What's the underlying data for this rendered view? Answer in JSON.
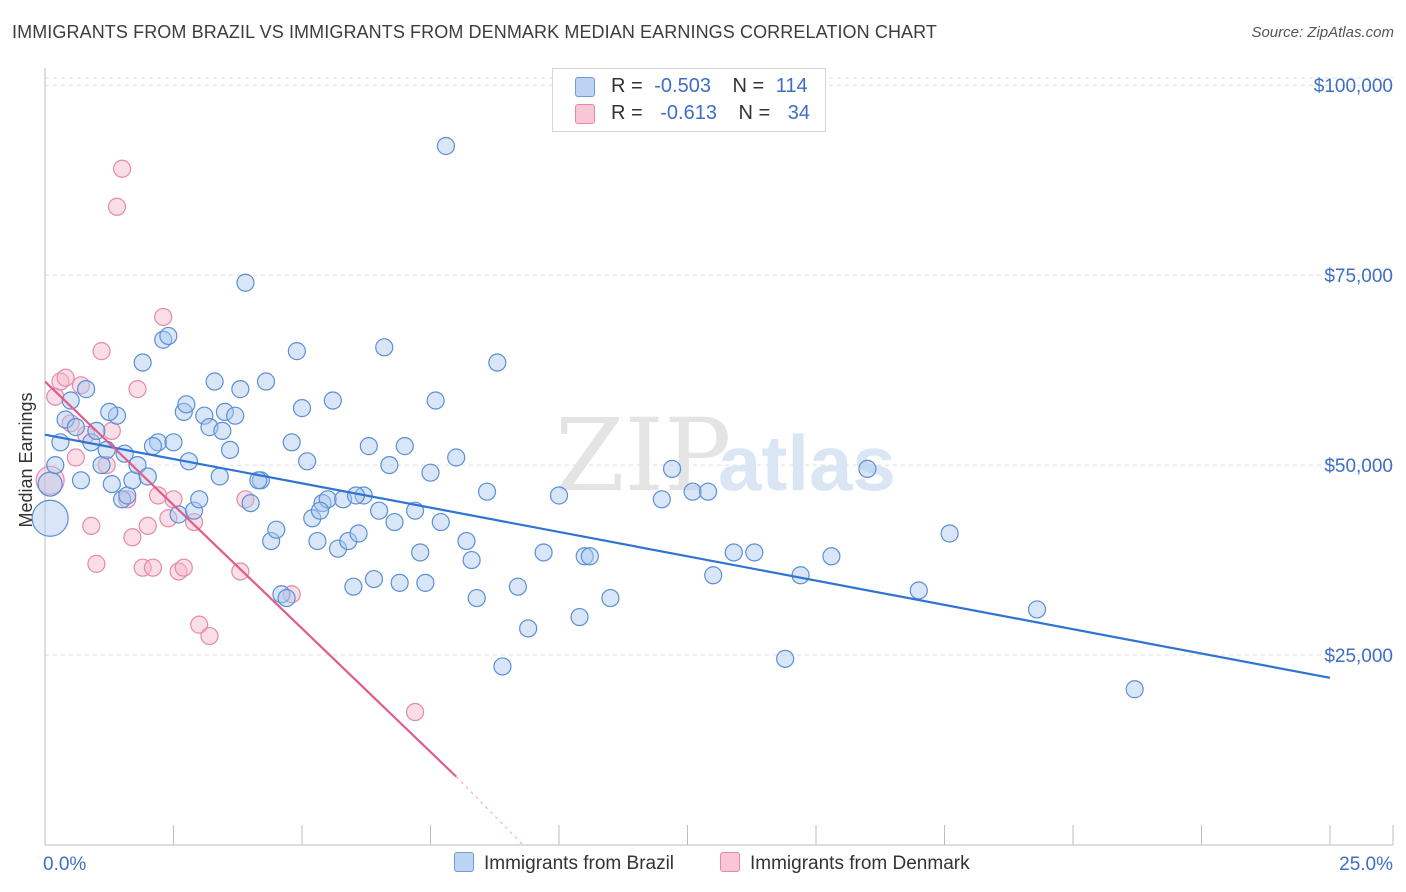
{
  "title": "IMMIGRANTS FROM BRAZIL VS IMMIGRANTS FROM DENMARK MEDIAN EARNINGS CORRELATION CHART",
  "source": "Source: ZipAtlas.com",
  "watermark": {
    "zip": "ZIP",
    "atlas": "atlas"
  },
  "legend": {
    "brazil": {
      "r_label": "R =",
      "r_value": "-0.503",
      "n_label": "N =",
      "n_value": "114"
    },
    "denmark": {
      "r_label": "R =",
      "r_value": "-0.613",
      "n_label": "N =",
      "n_value": "34"
    }
  },
  "colors": {
    "brazil_fill": "#a9c7ee",
    "brazil_stroke": "#5b8fd6",
    "brazil_line": "#2f74d0",
    "denmark_fill": "#f5b5c9",
    "denmark_stroke": "#e58aa8",
    "denmark_line": "#e05d8a",
    "tick_text": "#3d6fc4"
  },
  "chart_data": {
    "type": "scatter",
    "title": "IMMIGRANTS FROM BRAZIL VS IMMIGRANTS FROM DENMARK MEDIAN EARNINGS CORRELATION CHART",
    "xlabel": "",
    "ylabel": "Median Earnings",
    "xlim": [
      0,
      25
    ],
    "ylim": [
      0,
      102000
    ],
    "x_tick_labels": [
      "0.0%",
      "25.0%"
    ],
    "y_ticks": [
      25000,
      50000,
      75000,
      100000
    ],
    "y_tick_labels": [
      "$25,000",
      "$50,000",
      "$75,000",
      "$100,000"
    ],
    "grid": true,
    "legend_position": "top-center",
    "series": [
      {
        "name": "Immigrants from Brazil",
        "r": -0.503,
        "n": 114,
        "trend": {
          "x": [
            0,
            25
          ],
          "y": [
            54000,
            22000
          ]
        },
        "points": [
          [
            0.1,
            43000
          ],
          [
            0.1,
            47500
          ],
          [
            0.2,
            50000
          ],
          [
            0.3,
            53000
          ],
          [
            0.4,
            56000
          ],
          [
            0.5,
            58500
          ],
          [
            0.6,
            55000
          ],
          [
            0.7,
            48000
          ],
          [
            0.8,
            60000
          ],
          [
            0.9,
            53000
          ],
          [
            1.0,
            54500
          ],
          [
            1.1,
            50000
          ],
          [
            1.2,
            52000
          ],
          [
            1.3,
            47500
          ],
          [
            1.4,
            56500
          ],
          [
            1.5,
            45500
          ],
          [
            1.6,
            46000
          ],
          [
            1.7,
            48000
          ],
          [
            1.8,
            50000
          ],
          [
            1.9,
            63500
          ],
          [
            2.0,
            48500
          ],
          [
            2.2,
            53000
          ],
          [
            2.3,
            66500
          ],
          [
            2.4,
            67000
          ],
          [
            2.5,
            53000
          ],
          [
            2.6,
            43500
          ],
          [
            2.7,
            57000
          ],
          [
            2.8,
            50500
          ],
          [
            2.9,
            44000
          ],
          [
            3.0,
            45500
          ],
          [
            3.1,
            56500
          ],
          [
            3.2,
            55000
          ],
          [
            3.3,
            61000
          ],
          [
            3.4,
            48500
          ],
          [
            3.5,
            57000
          ],
          [
            3.6,
            52000
          ],
          [
            3.7,
            56500
          ],
          [
            3.8,
            60000
          ],
          [
            3.9,
            74000
          ],
          [
            4.0,
            45000
          ],
          [
            4.2,
            48000
          ],
          [
            4.3,
            61000
          ],
          [
            4.4,
            40000
          ],
          [
            4.5,
            41500
          ],
          [
            4.6,
            33000
          ],
          [
            4.7,
            32500
          ],
          [
            4.8,
            53000
          ],
          [
            4.9,
            65000
          ],
          [
            5.0,
            57500
          ],
          [
            5.1,
            50500
          ],
          [
            5.2,
            43000
          ],
          [
            5.3,
            40000
          ],
          [
            5.4,
            45000
          ],
          [
            5.5,
            45500
          ],
          [
            5.6,
            58500
          ],
          [
            5.7,
            39000
          ],
          [
            5.8,
            45500
          ],
          [
            5.9,
            40000
          ],
          [
            6.0,
            34000
          ],
          [
            6.1,
            41000
          ],
          [
            6.2,
            46000
          ],
          [
            6.3,
            52500
          ],
          [
            6.4,
            35000
          ],
          [
            6.5,
            44000
          ],
          [
            6.6,
            65500
          ],
          [
            6.7,
            50000
          ],
          [
            6.8,
            42500
          ],
          [
            6.9,
            34500
          ],
          [
            7.0,
            52500
          ],
          [
            7.2,
            44000
          ],
          [
            7.3,
            38500
          ],
          [
            7.4,
            34500
          ],
          [
            7.5,
            49000
          ],
          [
            7.6,
            58500
          ],
          [
            7.7,
            42500
          ],
          [
            8.0,
            51000
          ],
          [
            8.2,
            40000
          ],
          [
            8.3,
            37500
          ],
          [
            8.4,
            32500
          ],
          [
            8.6,
            46500
          ],
          [
            8.8,
            63500
          ],
          [
            8.9,
            23500
          ],
          [
            9.2,
            34000
          ],
          [
            9.4,
            28500
          ],
          [
            10.0,
            46000
          ],
          [
            10.4,
            30000
          ],
          [
            10.5,
            38000
          ],
          [
            10.6,
            38000
          ],
          [
            11.0,
            32500
          ],
          [
            12.0,
            45500
          ],
          [
            12.2,
            49500
          ],
          [
            12.6,
            46500
          ],
          [
            12.9,
            46500
          ],
          [
            13.0,
            35500
          ],
          [
            13.4,
            38500
          ],
          [
            13.8,
            38500
          ],
          [
            14.4,
            24500
          ],
          [
            14.7,
            35500
          ],
          [
            15.3,
            38000
          ],
          [
            16.0,
            49500
          ],
          [
            17.0,
            33500
          ],
          [
            17.6,
            41000
          ],
          [
            19.3,
            31000
          ],
          [
            21.2,
            20500
          ],
          [
            7.8,
            92000
          ],
          [
            2.1,
            52500
          ],
          [
            3.45,
            54500
          ],
          [
            4.15,
            48000
          ],
          [
            5.35,
            44000
          ],
          [
            6.05,
            46000
          ],
          [
            1.25,
            57000
          ],
          [
            2.75,
            58000
          ],
          [
            1.55,
            51500
          ],
          [
            9.7,
            38500
          ]
        ]
      },
      {
        "name": "Immigrants from Denmark",
        "r": -0.613,
        "n": 34,
        "trend": {
          "x": [
            0,
            8
          ],
          "y": [
            61000,
            9000
          ]
        },
        "trend_extension": {
          "x": [
            8,
            9.3
          ],
          "y": [
            9000,
            0
          ]
        },
        "points": [
          [
            0.1,
            48000
          ],
          [
            0.2,
            59000
          ],
          [
            0.3,
            61000
          ],
          [
            0.4,
            61500
          ],
          [
            0.5,
            55500
          ],
          [
            0.6,
            51000
          ],
          [
            0.7,
            60500
          ],
          [
            0.8,
            54000
          ],
          [
            0.9,
            42000
          ],
          [
            1.0,
            37000
          ],
          [
            1.1,
            65000
          ],
          [
            1.2,
            50000
          ],
          [
            1.3,
            54500
          ],
          [
            1.4,
            84000
          ],
          [
            1.5,
            89000
          ],
          [
            1.6,
            45500
          ],
          [
            1.7,
            40500
          ],
          [
            1.8,
            60000
          ],
          [
            1.9,
            36500
          ],
          [
            2.0,
            42000
          ],
          [
            2.1,
            36500
          ],
          [
            2.2,
            46000
          ],
          [
            2.3,
            69500
          ],
          [
            2.4,
            43000
          ],
          [
            2.5,
            45500
          ],
          [
            2.6,
            36000
          ],
          [
            2.7,
            36500
          ],
          [
            2.9,
            42500
          ],
          [
            3.0,
            29000
          ],
          [
            3.2,
            27500
          ],
          [
            3.8,
            36000
          ],
          [
            3.9,
            45500
          ],
          [
            4.8,
            33000
          ],
          [
            7.2,
            17500
          ]
        ]
      }
    ]
  },
  "bottom_legend": {
    "brazil": "Immigrants from Brazil",
    "denmark": "Immigrants from Denmark"
  }
}
